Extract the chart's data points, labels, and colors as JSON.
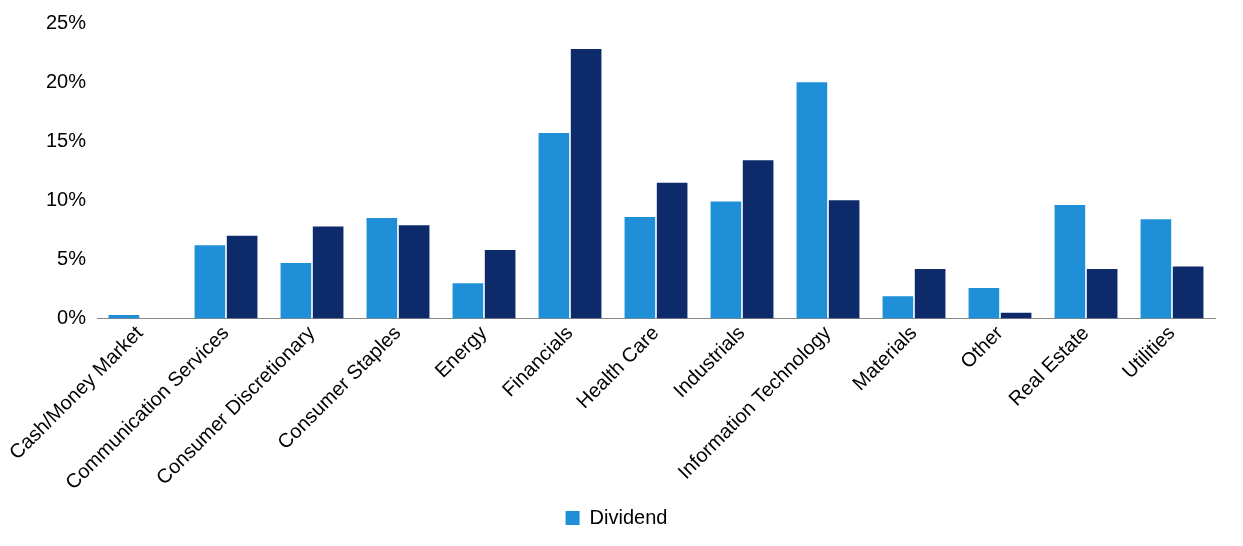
{
  "chart_data": {
    "type": "bar",
    "categories": [
      "Cash/Money Market",
      "Communication Services",
      "Consumer Discretionary",
      "Consumer Staples",
      "Energy",
      "Financials",
      "Health Care",
      "Industrials",
      "Information Technology",
      "Materials",
      "Other",
      "Real Estate",
      "Utilities"
    ],
    "series": [
      {
        "name": "Dividend",
        "color": "#1f8fd8",
        "values": [
          0.3,
          6.2,
          4.7,
          8.5,
          3.0,
          15.7,
          8.6,
          9.9,
          20.0,
          1.9,
          2.6,
          9.6,
          8.4
        ]
      },
      {
        "color": "#0d2a6b",
        "values": [
          0,
          7.0,
          7.8,
          7.9,
          5.8,
          22.8,
          11.5,
          13.4,
          10.0,
          4.2,
          0.5,
          4.2,
          4.4
        ]
      }
    ],
    "ylim": [
      0,
      25
    ],
    "yticks": [
      {
        "value": 0,
        "label": "0%"
      },
      {
        "value": 5,
        "label": "5%"
      },
      {
        "value": 10,
        "label": "10%"
      },
      {
        "value": 15,
        "label": "15%"
      },
      {
        "value": 20,
        "label": "20%"
      },
      {
        "value": 25,
        "label": "25%"
      }
    ],
    "grid": false,
    "legend": "bottom"
  }
}
